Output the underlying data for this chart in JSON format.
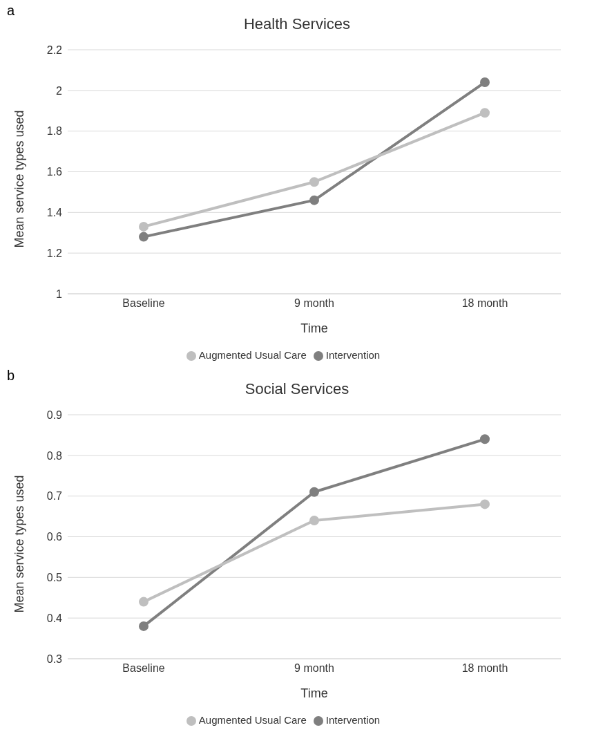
{
  "chart_data": [
    {
      "type": "line",
      "title": "Health Services",
      "xlabel": "Time",
      "ylabel": "Mean service types used",
      "annotations": [
        "a"
      ],
      "categories": [
        "Baseline",
        "9 month",
        "18 month"
      ],
      "series": [
        {
          "name": "Intervention",
          "color": "#7f7f7f",
          "values": [
            1.28,
            1.46,
            2.04
          ]
        },
        {
          "name": "Augmented Usual Care",
          "color": "#bfbfbf",
          "values": [
            1.33,
            1.55,
            1.89
          ]
        }
      ],
      "ylim": [
        1,
        2.2
      ],
      "yticks": [
        1,
        1.2,
        1.4,
        1.6,
        1.8,
        2,
        2.2
      ],
      "grid": "y",
      "legend": "bottom",
      "marker": "circle",
      "line_style": "solid"
    },
    {
      "type": "line",
      "title": "Social Services",
      "xlabel": "Time",
      "ylabel": "Mean service types used",
      "annotations": [
        "b"
      ],
      "categories": [
        "Baseline",
        "9 month",
        "18 month"
      ],
      "series": [
        {
          "name": "Intervention",
          "color": "#7f7f7f",
          "values": [
            0.38,
            0.71,
            0.84
          ]
        },
        {
          "name": "Augmented Usual Care",
          "color": "#bfbfbf",
          "values": [
            0.44,
            0.64,
            0.68
          ]
        }
      ],
      "ylim": [
        0.3,
        0.9
      ],
      "yticks": [
        0.3,
        0.4,
        0.5,
        0.6,
        0.7,
        0.8,
        0.9
      ],
      "grid": "y",
      "legend": "bottom",
      "marker": "circle",
      "line_style": "solid"
    }
  ]
}
